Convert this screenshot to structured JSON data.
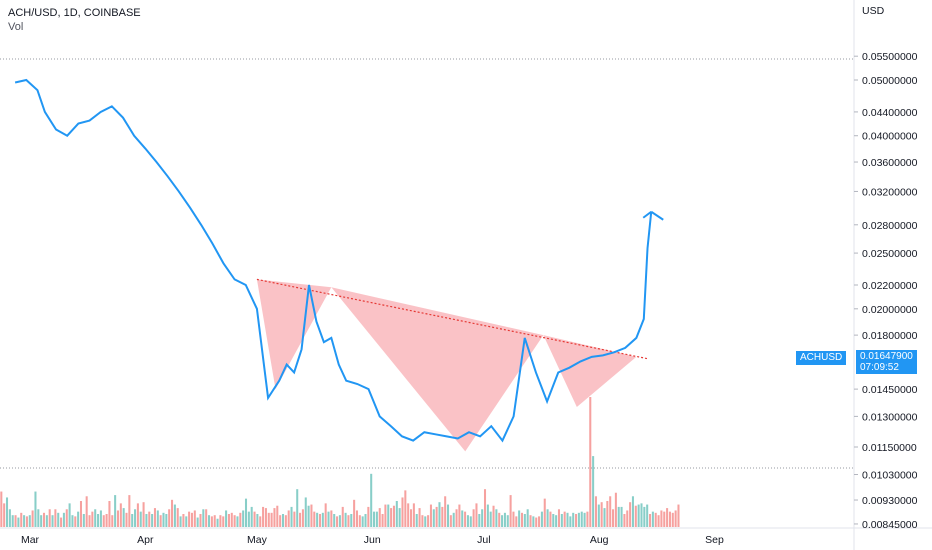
{
  "legend": {
    "symbol": "ACH/USD, 1D, COINBASE",
    "volume_label": "Vol"
  },
  "price_scale": {
    "currency": "USD",
    "labels": [
      "0.05500000",
      "0.05000000",
      "0.04400000",
      "0.04000000",
      "0.03600000",
      "0.03200000",
      "0.02800000",
      "0.02500000",
      "0.02200000",
      "0.02000000",
      "0.01800000",
      "0.01450000",
      "0.01300000",
      "0.01150000",
      "0.01030000",
      "0.00930000",
      "0.00845000"
    ],
    "current_price": "0.01647900",
    "countdown": "07:09:52",
    "symbol_badge": "ACHUSD"
  },
  "colors": {
    "line": "#2196f3",
    "triangle_fill": "#f7a1a8",
    "trendline": "#e53935",
    "vol_up": "#26a69a",
    "vol_down": "#ef5350",
    "badge": "#2196f3"
  },
  "chart_data": {
    "type": "line",
    "title": "ACH/USD, 1D, COINBASE",
    "xlabel": "",
    "ylabel": "USD",
    "x_ticks": [
      "Mar",
      "Apr",
      "May",
      "Jun",
      "Jul",
      "Aug",
      "Sep"
    ],
    "y_scale": "log",
    "ylim": [
      0.00845,
      0.055
    ],
    "series": [
      {
        "name": "ACHUSD",
        "x": [
          "2021-02-25",
          "2021-02-28",
          "2021-03-03",
          "2021-03-05",
          "2021-03-08",
          "2021-03-11",
          "2021-03-14",
          "2021-03-17",
          "2021-03-20",
          "2021-03-23",
          "2021-03-26",
          "2021-03-29",
          "2021-04-01",
          "2021-04-04",
          "2021-04-07",
          "2021-04-10",
          "2021-04-13",
          "2021-04-16",
          "2021-04-19",
          "2021-04-22",
          "2021-04-25",
          "2021-04-28",
          "2021-05-01",
          "2021-05-04",
          "2021-05-07",
          "2021-05-09",
          "2021-05-11",
          "2021-05-13",
          "2021-05-15",
          "2021-05-17",
          "2021-05-19",
          "2021-05-21",
          "2021-05-23",
          "2021-05-25",
          "2021-05-28",
          "2021-05-31",
          "2021-06-03",
          "2021-06-06",
          "2021-06-09",
          "2021-06-12",
          "2021-06-15",
          "2021-06-18",
          "2021-06-21",
          "2021-06-24",
          "2021-06-27",
          "2021-06-30",
          "2021-07-03",
          "2021-07-06",
          "2021-07-09",
          "2021-07-12",
          "2021-07-15",
          "2021-07-18",
          "2021-07-21",
          "2021-07-24",
          "2021-07-27",
          "2021-07-30",
          "2021-08-02",
          "2021-08-05",
          "2021-08-08",
          "2021-08-11",
          "2021-08-13",
          "2021-08-14",
          "2021-08-15"
        ],
        "values": [
          0.0495,
          0.05,
          0.048,
          0.044,
          0.041,
          0.04,
          0.042,
          0.0425,
          0.044,
          0.045,
          0.043,
          0.04,
          0.038,
          0.036,
          0.034,
          0.032,
          0.03,
          0.028,
          0.026,
          0.024,
          0.0225,
          0.022,
          0.02,
          0.014,
          0.015,
          0.016,
          0.0155,
          0.017,
          0.022,
          0.019,
          0.0175,
          0.0178,
          0.016,
          0.015,
          0.0148,
          0.0145,
          0.013,
          0.0125,
          0.012,
          0.0118,
          0.0122,
          0.0121,
          0.012,
          0.0119,
          0.0122,
          0.012,
          0.0125,
          0.0118,
          0.013,
          0.0178,
          0.0155,
          0.0138,
          0.0155,
          0.0158,
          0.0162,
          0.0165,
          0.0166,
          0.0168,
          0.0171,
          0.0178,
          0.0192,
          0.0255,
          0.0295
        ]
      }
    ],
    "annotations": {
      "trendline": {
        "from": [
          "2021-05-01",
          0.0225
        ],
        "to": [
          "2021-08-11",
          0.0165
        ]
      },
      "triangles": [
        {
          "points": [
            [
              "2021-05-01",
              0.0225
            ],
            [
              "2021-05-21",
              0.0218
            ],
            [
              "2021-05-06",
              0.0145
            ]
          ]
        },
        {
          "points": [
            [
              "2021-05-21",
              0.0218
            ],
            [
              "2021-07-17",
              0.018
            ],
            [
              "2021-06-26",
              0.0113
            ]
          ]
        },
        {
          "points": [
            [
              "2021-07-17",
              0.018
            ],
            [
              "2021-08-11",
              0.0165
            ],
            [
              "2021-07-26",
              0.0135
            ]
          ]
        }
      ],
      "arrow_target": [
        "2021-08-15",
        0.0295
      ]
    },
    "volume": {
      "label": "Vol",
      "values": [
        3,
        2,
        2.5,
        1.5,
        1,
        1,
        0.8,
        1.2,
        1,
        0.9,
        1,
        1.4,
        3,
        1.5,
        1,
        1.2,
        1,
        1.5,
        1,
        1.5,
        1.2,
        0.8,
        1.2,
        1.5,
        2,
        1,
        0.9,
        1.3,
        2.2,
        1.1,
        2.6,
        1,
        1.3,
        1.5,
        1.1,
        1.4,
        1,
        1.1,
        2.2,
        1,
        2.7,
        1.4,
        2,
        1.6,
        1.2,
        2.7,
        1.1,
        1.5,
        2,
        1.3,
        2.1,
        1.1,
        1.3,
        1.1,
        1.6,
        1.4,
        1,
        1.2,
        1.1,
        1.5,
        2.3,
        1.9,
        1.6,
        0.9,
        1.1,
        0.9,
        1.3,
        1.2,
        1.4,
        0.8,
        1.1,
        1.5,
        1.5,
        1,
        0.9,
        1,
        0.7,
        1,
        0.9,
        1.4,
        1.1,
        1.2,
        1,
        0.9,
        1.2,
        1.4,
        2.4,
        1.3,
        1.7,
        1.3,
        1.1,
        0.9,
        1.7,
        1.6,
        1.2,
        1.2,
        1.6,
        1.8,
        1,
        1.1,
        1,
        1.4,
        1.7,
        1.3,
        3.2,
        1.2,
        1.5,
        2.5,
        1.8,
        1.9,
        1.3,
        1.2,
        1.1,
        1.2,
        2,
        1.3,
        1.4,
        1.1,
        0.9,
        1,
        1.7,
        1.2,
        1,
        1.1,
        2.3,
        1.4,
        1,
        0.9,
        1.1,
        1.7,
        4.5,
        1.3,
        1.3,
        1.6,
        1.1,
        1.9,
        1.9,
        1.6,
        1.8,
        2.2,
        1.6,
        2.5,
        3.1,
        2,
        1.5,
        2,
        1.1,
        1.6,
        1,
        0.9,
        1,
        1.9,
        1.5,
        1.7,
        2.1,
        1.7,
        2.6,
        1.9,
        1,
        1.2,
        1.5,
        1.9,
        1.4,
        1.3,
        1,
        0.9,
        1.5,
        2,
        1.1,
        1.5,
        3.2,
        1.9,
        1.3,
        1.8,
        1.5,
        1.2,
        1,
        1.2,
        1,
        2.7,
        1.3,
        0.9,
        1.4,
        1.2,
        1.1,
        1.5,
        1,
        0.9,
        0.8,
        0.9,
        1.3,
        2.4,
        1.5,
        1.3,
        1.1,
        1,
        1.5,
        1.1,
        1.3,
        1.2,
        0.9,
        1.2,
        1.1,
        1.2,
        1.3,
        1.2,
        1.3,
        11,
        6,
        2.6,
        1.9,
        2.1,
        1.6,
        2.2,
        2.6,
        1.5,
        2.9,
        1.7,
        1.7,
        1.1,
        1.4,
        2.1,
        2.6,
        1.8,
        1.9,
        2,
        1.7,
        1.9,
        1.1,
        1.3,
        1.2,
        1,
        1.4,
        1.3,
        1.6,
        1.3,
        1.2,
        1.4,
        1.9
      ],
      "up": [
        false,
        false,
        true,
        true,
        true,
        false,
        true,
        false,
        true,
        false,
        true,
        false,
        true,
        true,
        true,
        false,
        true,
        false,
        true,
        false,
        true,
        false,
        true,
        false,
        true,
        true,
        false,
        true,
        false,
        true,
        false,
        false,
        false,
        true,
        true,
        true,
        false,
        false,
        false,
        false,
        true,
        false,
        false,
        true,
        false,
        false,
        true,
        true,
        false,
        true,
        false,
        true,
        false,
        true,
        false,
        true,
        false,
        true,
        true,
        false,
        false,
        true,
        false,
        true,
        false,
        true,
        false,
        false,
        false,
        true,
        false,
        true,
        false,
        true,
        false,
        false,
        true,
        false,
        false,
        true,
        false,
        false,
        false,
        true,
        false,
        true,
        true,
        true,
        true,
        false,
        true,
        false,
        false,
        false,
        false,
        false,
        false,
        false,
        false,
        true,
        false,
        false,
        true,
        false,
        true,
        false,
        false,
        true,
        true,
        false,
        false,
        true,
        false,
        true,
        false,
        true,
        false,
        true,
        false,
        true,
        false,
        true,
        false,
        true,
        false,
        false,
        false,
        true,
        true,
        false,
        true,
        true,
        true,
        false,
        false,
        false,
        true,
        false,
        false,
        true,
        true,
        false,
        false,
        false,
        false,
        false,
        true,
        false,
        false,
        true,
        false,
        false,
        true,
        false,
        true,
        false,
        false,
        true,
        false,
        true,
        false,
        false,
        true,
        false,
        true,
        true,
        false,
        false,
        true,
        true,
        false,
        true,
        true,
        false,
        true,
        false,
        true,
        true,
        true,
        false,
        false,
        false,
        true,
        false,
        true,
        true,
        false,
        true,
        false,
        false,
        true,
        false,
        true,
        false,
        true,
        true,
        false,
        true,
        false,
        true,
        true,
        true,
        false,
        true,
        true,
        true,
        false,
        false,
        true,
        false,
        true,
        false,
        true,
        false,
        false,
        false,
        false,
        true,
        true,
        false,
        false,
        false,
        true,
        false,
        true,
        true,
        true,
        true,
        false,
        true
      ]
    }
  }
}
